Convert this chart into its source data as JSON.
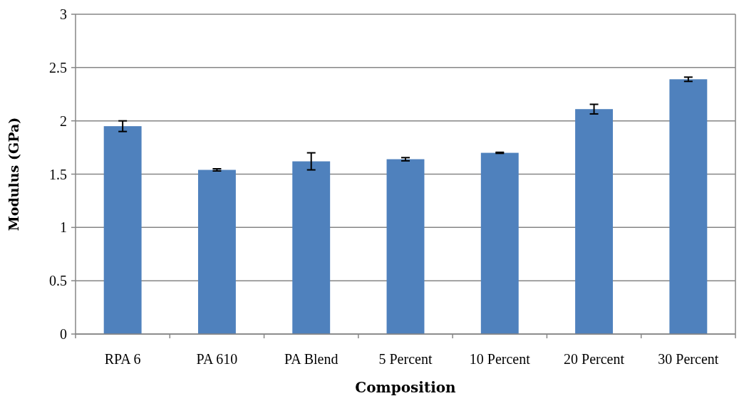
{
  "chart_data": {
    "type": "bar",
    "xlabel": "Composition",
    "ylabel": "Modulus (GPa)",
    "categories": [
      "RPA 6",
      "PA 610",
      "PA Blend",
      "5 Percent",
      "10 Percent",
      "20 Percent",
      "30 Percent"
    ],
    "values": [
      1.95,
      1.54,
      1.62,
      1.64,
      1.7,
      2.11,
      2.39
    ],
    "errors": [
      0.05,
      0.01,
      0.08,
      0.015,
      0.005,
      0.045,
      0.02
    ],
    "color": "#4f81bd",
    "ylim": [
      0,
      3
    ],
    "yticks": [
      0,
      0.5,
      1,
      1.5,
      2,
      2.5,
      3
    ],
    "grid": "y"
  }
}
